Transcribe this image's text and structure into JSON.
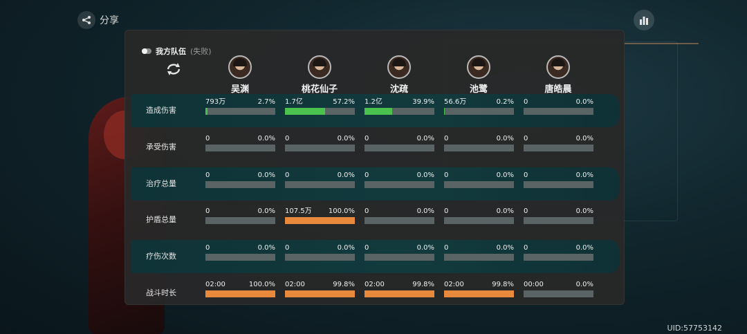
{
  "share": {
    "label": "分享",
    "icon": "share-icon"
  },
  "stats": {
    "icon": "bar-chart-icon"
  },
  "uid": "UID:57753142",
  "team": {
    "name": "我方队伍",
    "result": "(失败)"
  },
  "colors": {
    "damage": "#4bc14e",
    "orange": "#e9893b",
    "track": "#5a6465"
  },
  "heroes": [
    {
      "name": "吴渊"
    },
    {
      "name": "桃花仙子"
    },
    {
      "name": "沈疏"
    },
    {
      "name": "池鹭"
    },
    {
      "name": "唐皓晨"
    }
  ],
  "rows": [
    {
      "label": "造成伤害",
      "color": "#4bc14e",
      "cells": [
        {
          "value": "793万",
          "pct": "2.7%",
          "frac": 0.027
        },
        {
          "value": "1.7亿",
          "pct": "57.2%",
          "frac": 0.572
        },
        {
          "value": "1.2亿",
          "pct": "39.9%",
          "frac": 0.399
        },
        {
          "value": "56.6万",
          "pct": "0.2%",
          "frac": 0.002
        },
        {
          "value": "0",
          "pct": "0.0%",
          "frac": 0
        }
      ]
    },
    {
      "label": "承受伤害",
      "color": "#e9893b",
      "cells": [
        {
          "value": "0",
          "pct": "0.0%",
          "frac": 0
        },
        {
          "value": "0",
          "pct": "0.0%",
          "frac": 0
        },
        {
          "value": "0",
          "pct": "0.0%",
          "frac": 0
        },
        {
          "value": "0",
          "pct": "0.0%",
          "frac": 0
        },
        {
          "value": "0",
          "pct": "0.0%",
          "frac": 0
        }
      ]
    },
    {
      "label": "治疗总量",
      "color": "#4bc14e",
      "cells": [
        {
          "value": "0",
          "pct": "0.0%",
          "frac": 0
        },
        {
          "value": "0",
          "pct": "0.0%",
          "frac": 0
        },
        {
          "value": "0",
          "pct": "0.0%",
          "frac": 0
        },
        {
          "value": "0",
          "pct": "0.0%",
          "frac": 0
        },
        {
          "value": "0",
          "pct": "0.0%",
          "frac": 0
        }
      ]
    },
    {
      "label": "护盾总量",
      "color": "#e9893b",
      "cells": [
        {
          "value": "0",
          "pct": "0.0%",
          "frac": 0
        },
        {
          "value": "107.5万",
          "pct": "100.0%",
          "frac": 1.0
        },
        {
          "value": "0",
          "pct": "0.0%",
          "frac": 0
        },
        {
          "value": "0",
          "pct": "0.0%",
          "frac": 0
        },
        {
          "value": "0",
          "pct": "0.0%",
          "frac": 0
        }
      ]
    },
    {
      "label": "疗伤次数",
      "color": "#4bc14e",
      "cells": [
        {
          "value": "0",
          "pct": "0.0%",
          "frac": 0
        },
        {
          "value": "0",
          "pct": "0.0%",
          "frac": 0
        },
        {
          "value": "0",
          "pct": "0.0%",
          "frac": 0
        },
        {
          "value": "0",
          "pct": "0.0%",
          "frac": 0
        },
        {
          "value": "0",
          "pct": "0.0%",
          "frac": 0
        }
      ]
    },
    {
      "label": "战斗时长",
      "color": "#e9893b",
      "cells": [
        {
          "value": "02:00",
          "pct": "100.0%",
          "frac": 1.0
        },
        {
          "value": "02:00",
          "pct": "99.8%",
          "frac": 0.998
        },
        {
          "value": "02:00",
          "pct": "99.8%",
          "frac": 0.998
        },
        {
          "value": "02:00",
          "pct": "99.8%",
          "frac": 0.998
        },
        {
          "value": "00:00",
          "pct": "0.0%",
          "frac": 0
        }
      ]
    }
  ]
}
